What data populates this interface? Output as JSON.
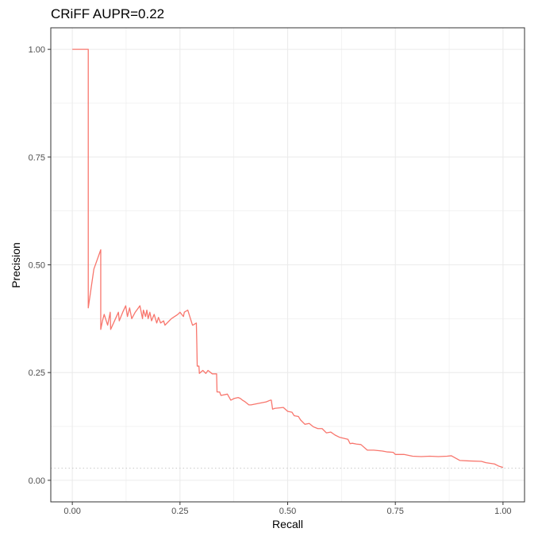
{
  "chart_data": {
    "type": "line",
    "title": "CRiFF AUPR=0.22",
    "xlabel": "Recall",
    "ylabel": "Precision",
    "xlim": [
      -0.05,
      1.05
    ],
    "ylim": [
      -0.05,
      1.05
    ],
    "x_ticks": [
      0.0,
      0.25,
      0.5,
      0.75,
      1.0
    ],
    "x_tick_labels": [
      "0.00",
      "0.25",
      "0.50",
      "0.75",
      "1.00"
    ],
    "y_ticks": [
      0.0,
      0.25,
      0.5,
      0.75,
      1.0
    ],
    "y_tick_labels": [
      "0.00",
      "0.25",
      "0.50",
      "0.75",
      "1.00"
    ],
    "grid": true,
    "baseline": 0.028,
    "colors": {
      "line": "#F8766D",
      "baseline": "#c8c8c8",
      "grid": "#ebebeb",
      "panel_border": "#333333"
    },
    "series": [
      {
        "x": [
          0.0,
          0.037,
          0.037,
          0.05,
          0.066,
          0.066,
          0.07,
          0.074,
          0.082,
          0.088,
          0.089,
          0.098,
          0.107,
          0.109,
          0.117,
          0.124,
          0.128,
          0.133,
          0.138,
          0.146,
          0.157,
          0.163,
          0.165,
          0.17,
          0.173,
          0.176,
          0.18,
          0.184,
          0.19,
          0.196,
          0.2,
          0.205,
          0.212,
          0.215,
          0.22,
          0.23,
          0.245,
          0.25,
          0.258,
          0.26,
          0.268,
          0.279,
          0.28,
          0.288,
          0.289,
          0.29,
          0.294,
          0.295,
          0.303,
          0.31,
          0.315,
          0.325,
          0.335,
          0.336,
          0.34,
          0.342,
          0.345,
          0.36,
          0.368,
          0.376,
          0.385,
          0.39,
          0.395,
          0.4,
          0.41,
          0.415,
          0.43,
          0.45,
          0.46,
          0.462,
          0.465,
          0.47,
          0.49,
          0.5,
          0.51,
          0.515,
          0.525,
          0.53,
          0.54,
          0.55,
          0.56,
          0.57,
          0.58,
          0.59,
          0.6,
          0.61,
          0.62,
          0.64,
          0.645,
          0.65,
          0.66,
          0.67,
          0.685,
          0.7,
          0.72,
          0.73,
          0.745,
          0.75,
          0.77,
          0.78,
          0.79,
          0.81,
          0.83,
          0.85,
          0.87,
          0.88,
          0.9,
          0.92,
          0.95,
          0.96,
          0.98,
          0.99,
          1.0
        ],
        "y": [
          1.0,
          1.0,
          0.4,
          0.49,
          0.535,
          0.35,
          0.37,
          0.385,
          0.36,
          0.39,
          0.35,
          0.37,
          0.39,
          0.37,
          0.39,
          0.405,
          0.38,
          0.4,
          0.375,
          0.39,
          0.405,
          0.375,
          0.395,
          0.38,
          0.395,
          0.375,
          0.39,
          0.37,
          0.385,
          0.365,
          0.378,
          0.365,
          0.37,
          0.36,
          0.365,
          0.375,
          0.385,
          0.39,
          0.38,
          0.39,
          0.395,
          0.36,
          0.36,
          0.365,
          0.32,
          0.265,
          0.265,
          0.248,
          0.255,
          0.248,
          0.255,
          0.247,
          0.247,
          0.205,
          0.205,
          0.205,
          0.197,
          0.2,
          0.186,
          0.19,
          0.192,
          0.19,
          0.186,
          0.183,
          0.175,
          0.175,
          0.178,
          0.182,
          0.186,
          0.186,
          0.165,
          0.167,
          0.169,
          0.16,
          0.158,
          0.15,
          0.148,
          0.14,
          0.13,
          0.132,
          0.124,
          0.12,
          0.12,
          0.11,
          0.112,
          0.105,
          0.1,
          0.095,
          0.085,
          0.086,
          0.084,
          0.083,
          0.07,
          0.07,
          0.068,
          0.066,
          0.065,
          0.06,
          0.06,
          0.058,
          0.056,
          0.055,
          0.056,
          0.055,
          0.056,
          0.057,
          0.046,
          0.045,
          0.044,
          0.041,
          0.038,
          0.033,
          0.03
        ]
      }
    ]
  }
}
